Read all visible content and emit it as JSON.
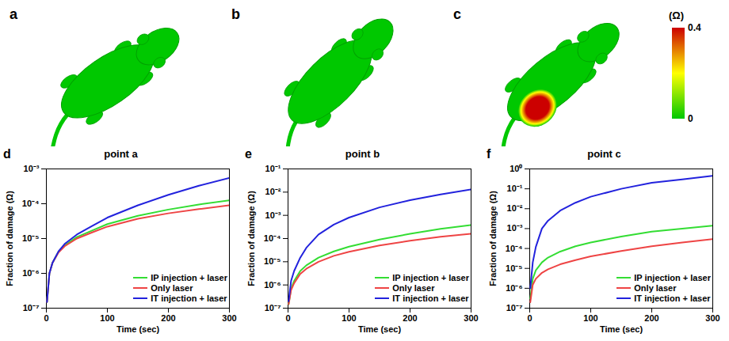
{
  "panels": [
    {
      "letter": "a",
      "max_damage": 0
    },
    {
      "letter": "b",
      "max_damage": 0
    },
    {
      "letter": "c",
      "max_damage": 0.4
    }
  ],
  "colorbar": {
    "label": "(Ω)",
    "range": [
      0,
      0.4
    ],
    "ticks": [
      0.4,
      0
    ],
    "colors": [
      "#00c800",
      "#ffff00",
      "#cc0000"
    ]
  },
  "chart_data": [
    {
      "type": "line",
      "panel": "d",
      "title": "point a",
      "x_label": "Time (sec)",
      "y_label": "Fraction of damage (Ω)",
      "log": "y",
      "legend": "bottom-right",
      "xlim": [
        0,
        300
      ],
      "xticks": [
        0,
        100,
        200,
        300
      ],
      "ylim": [
        1e-07,
        0.001
      ],
      "yticks": [
        {
          "value": 1e-07,
          "label": "10⁻⁷"
        },
        {
          "value": 1e-06,
          "label": "10⁻⁶"
        },
        {
          "value": 1e-05,
          "label": "10⁻⁵"
        },
        {
          "value": 0.0001,
          "label": "10⁻⁴"
        },
        {
          "value": 0.001,
          "label": "10⁻³"
        }
      ],
      "x": [
        1,
        5,
        10,
        20,
        30,
        50,
        75,
        100,
        150,
        200,
        250,
        300
      ],
      "series": [
        {
          "name": "IP injection + laser",
          "color": "#33dd33",
          "values": [
            1.5e-07,
            1e-06,
            2e-06,
            4.2e-06,
            6.3e-06,
            1.1e-05,
            1.7e-05,
            2.6e-05,
            4.5e-05,
            6.8e-05,
            9.5e-05,
            0.000125
          ]
        },
        {
          "name": "Only laser",
          "color": "#ee4444",
          "values": [
            1.5e-07,
            1e-06,
            2e-06,
            4e-06,
            6e-06,
            1e-05,
            1.5e-05,
            2.2e-05,
            3.7e-05,
            5.3e-05,
            7e-05,
            9e-05
          ]
        },
        {
          "name": "IT injection + laser",
          "color": "#2222dd",
          "values": [
            1.5e-07,
            1e-06,
            2e-06,
            4.3e-06,
            7e-06,
            1.3e-05,
            2.3e-05,
            4e-05,
            9e-05,
            0.00018,
            0.00033,
            0.00055
          ]
        }
      ]
    },
    {
      "type": "line",
      "panel": "e",
      "title": "point b",
      "x_label": "Time (sec)",
      "y_label": "Fraction of damage (Ω)",
      "log": "y",
      "legend": "bottom-right",
      "xlim": [
        0,
        300
      ],
      "xticks": [
        0,
        100,
        200,
        300
      ],
      "ylim": [
        1e-07,
        0.1
      ],
      "yticks": [
        {
          "value": 1e-07,
          "label": "10⁻⁷"
        },
        {
          "value": 1e-06,
          "label": "10⁻⁶"
        },
        {
          "value": 1e-05,
          "label": "10⁻⁵"
        },
        {
          "value": 0.0001,
          "label": "10⁻⁴"
        },
        {
          "value": 0.001,
          "label": "10⁻³"
        },
        {
          "value": 0.01,
          "label": "10⁻²"
        },
        {
          "value": 0.1,
          "label": "10⁻¹"
        }
      ],
      "x": [
        1,
        5,
        10,
        20,
        30,
        50,
        75,
        100,
        150,
        200,
        250,
        300
      ],
      "series": [
        {
          "name": "IP injection + laser",
          "color": "#33dd33",
          "values": [
            1.5e-07,
            7e-07,
            1.5e-06,
            4e-06,
            7e-06,
            1.5e-05,
            2.8e-05,
            4.5e-05,
            9e-05,
            0.00016,
            0.00026,
            0.00038
          ]
        },
        {
          "name": "Only laser",
          "color": "#ee4444",
          "values": [
            1.5e-07,
            6e-07,
            1.2e-06,
            3e-06,
            5e-06,
            1e-05,
            1.8e-05,
            2.7e-05,
            5e-05,
            8e-05,
            0.00012,
            0.00016
          ]
        },
        {
          "name": "IT injection + laser",
          "color": "#2222dd",
          "values": [
            2e-07,
            1.5e-06,
            4e-06,
            1.5e-05,
            4e-05,
            0.00015,
            0.0004,
            0.0008,
            0.0022,
            0.0045,
            0.008,
            0.013
          ]
        }
      ]
    },
    {
      "type": "line",
      "panel": "f",
      "title": "point c",
      "x_label": "Time (sec)",
      "y_label": "Fraction of damage (Ω)",
      "log": "y",
      "legend": "bottom-right",
      "xlim": [
        0,
        300
      ],
      "xticks": [
        0,
        100,
        200,
        300
      ],
      "ylim": [
        1e-07,
        1
      ],
      "yticks": [
        {
          "value": 1e-07,
          "label": "10⁻⁷"
        },
        {
          "value": 1e-06,
          "label": "10⁻⁶"
        },
        {
          "value": 1e-05,
          "label": "10⁻⁵"
        },
        {
          "value": 0.0001,
          "label": "10⁻⁴"
        },
        {
          "value": 0.001,
          "label": "10⁻³"
        },
        {
          "value": 0.01,
          "label": "10⁻²"
        },
        {
          "value": 0.1,
          "label": "10⁻¹"
        },
        {
          "value": 1,
          "label": "10⁰"
        }
      ],
      "x": [
        1,
        5,
        10,
        20,
        30,
        50,
        75,
        100,
        150,
        200,
        250,
        300
      ],
      "series": [
        {
          "name": "IP injection + laser",
          "color": "#33dd33",
          "values": [
            3e-07,
            3e-06,
            8e-06,
            2e-05,
            3.5e-05,
            7e-05,
            0.00013,
            0.0002,
            0.0004,
            0.0007,
            0.001,
            0.0014
          ]
        },
        {
          "name": "Only laser",
          "color": "#ee4444",
          "values": [
            2e-07,
            1.5e-06,
            3e-06,
            6e-06,
            9e-06,
            1.6e-05,
            2.6e-05,
            4e-05,
            7.5e-05,
            0.00013,
            0.0002,
            0.0003
          ]
        },
        {
          "name": "IT injection + laser",
          "color": "#2222dd",
          "values": [
            1e-06,
            2e-05,
            0.00012,
            0.001,
            0.0025,
            0.008,
            0.02,
            0.04,
            0.1,
            0.2,
            0.3,
            0.45
          ]
        }
      ]
    }
  ]
}
